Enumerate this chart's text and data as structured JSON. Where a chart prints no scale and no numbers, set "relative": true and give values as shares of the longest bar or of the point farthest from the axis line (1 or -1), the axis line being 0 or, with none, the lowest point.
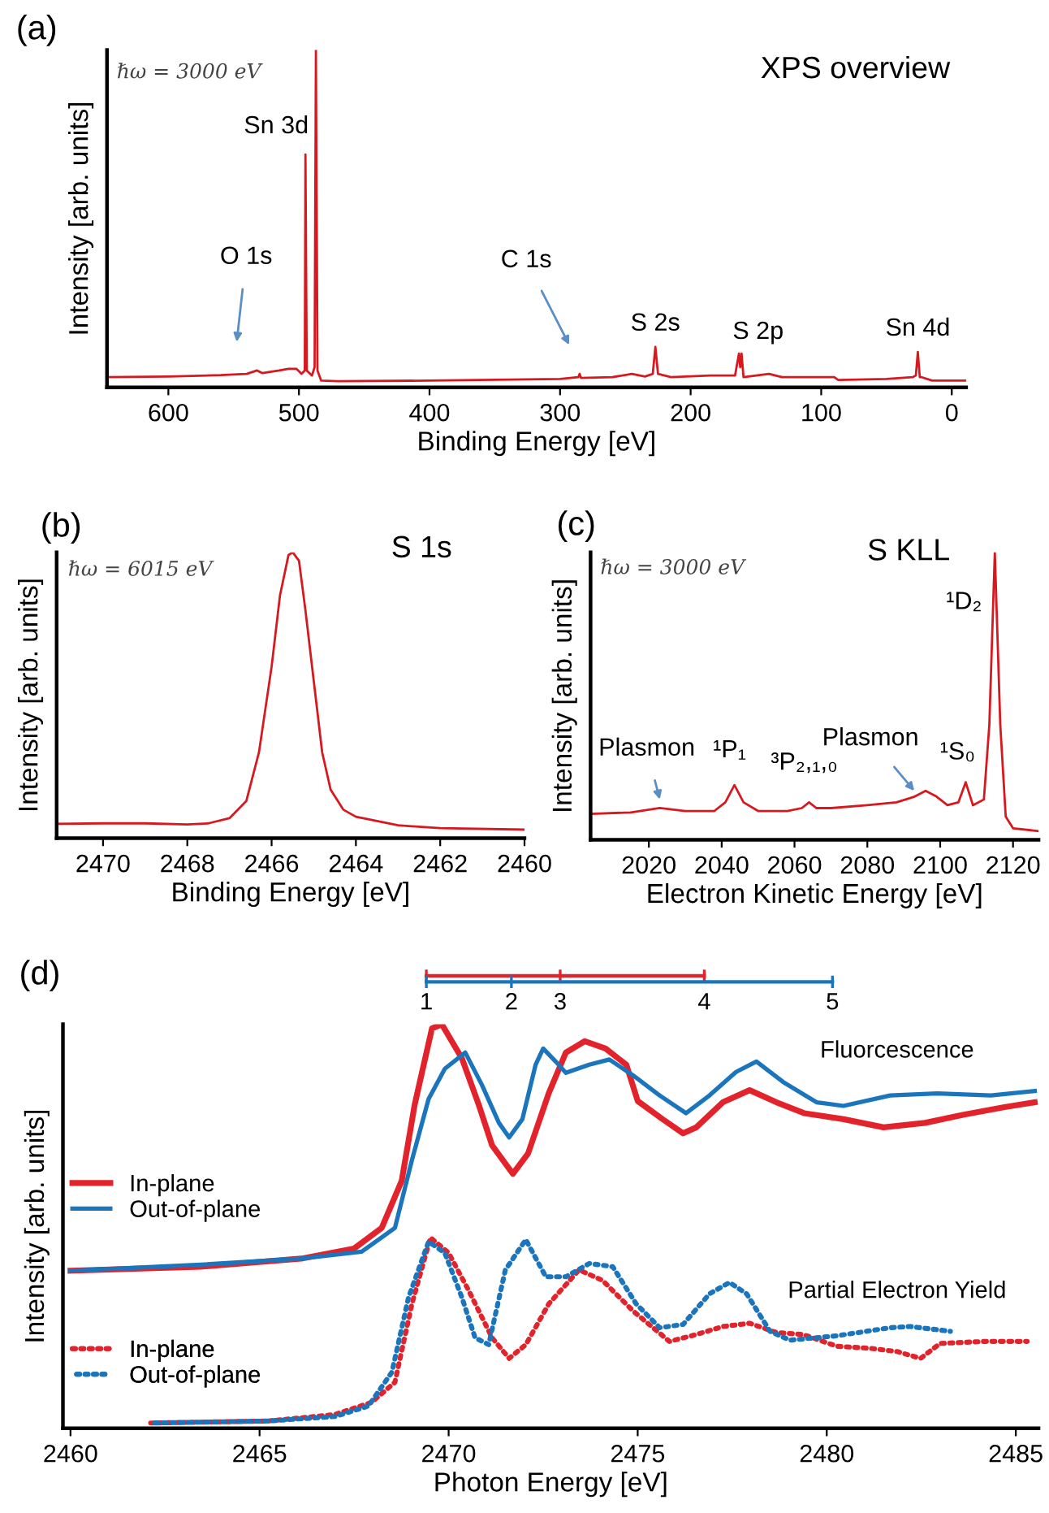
{
  "chart_data": [
    {
      "type": "line",
      "title": "XPS overview",
      "xlabel": "Binding Energy [eV]",
      "ylabel": "Intensity [arb. units]",
      "relative": true,
      "xlim": [
        647,
        -11
      ],
      "xticks": [
        600,
        500,
        400,
        300,
        200,
        100,
        0
      ],
      "series": [
        {
          "color": "#d7191f",
          "x": [
            647,
            600,
            560,
            540,
            532,
            528,
            515,
            508,
            502,
            498,
            495.5,
            495,
            494,
            490,
            488,
            487,
            485.8,
            483,
            470,
            400,
            300,
            286,
            285,
            284,
            260,
            245,
            235,
            229,
            227,
            225,
            215,
            185,
            166,
            163,
            162,
            161,
            159.5,
            140,
            130,
            100,
            90,
            87,
            50,
            30,
            27.5,
            26,
            24.5,
            23,
            15,
            -11
          ],
          "values": [
            0.03,
            0.032,
            0.036,
            0.04,
            0.05,
            0.042,
            0.05,
            0.055,
            0.055,
            0.04,
            0.05,
            0.69,
            0.05,
            0.035,
            0.06,
            1.0,
            0.05,
            0.02,
            0.018,
            0.02,
            0.025,
            0.03,
            0.04,
            0.028,
            0.03,
            0.04,
            0.032,
            0.04,
            0.12,
            0.04,
            0.03,
            0.035,
            0.035,
            0.1,
            0.06,
            0.1,
            0.03,
            0.04,
            0.03,
            0.03,
            0.03,
            0.022,
            0.025,
            0.03,
            0.035,
            0.105,
            0.03,
            0.03,
            0.02,
            0.02
          ]
        }
      ],
      "annotations": [
        "(a)",
        "ℏω = 3000 eV",
        {
          "text": "Sn 3d",
          "x": 495,
          "y": 0.69
        },
        "O 1s",
        "C 1s",
        {
          "text": "S 2s",
          "x": 227,
          "y": 0.12
        },
        {
          "text": "S 2p",
          "x": 162,
          "y": 0.1
        },
        {
          "text": "Sn 4d",
          "x": 26,
          "y": 0.105
        }
      ]
    },
    {
      "type": "line",
      "title": "S 1s",
      "xlabel": "Binding Energy [eV]",
      "ylabel": "Intensity [arb. units]",
      "relative": true,
      "xlim": [
        2471.1,
        2460
      ],
      "xticks": [
        2470,
        2468,
        2466,
        2464,
        2462,
        2460
      ],
      "series": [
        {
          "color": "#d7191f",
          "x": [
            2471.1,
            2470,
            2469,
            2468,
            2467.5,
            2467,
            2466.6,
            2466.3,
            2466.0,
            2465.8,
            2465.6,
            2465.5,
            2465.35,
            2465.2,
            2465.0,
            2464.8,
            2464.6,
            2464.3,
            2464,
            2463,
            2462,
            2460
          ],
          "values": [
            0.05,
            0.052,
            0.052,
            0.048,
            0.052,
            0.07,
            0.13,
            0.3,
            0.6,
            0.85,
            0.99,
            1.0,
            0.97,
            0.8,
            0.55,
            0.3,
            0.17,
            0.1,
            0.075,
            0.045,
            0.035,
            0.03
          ]
        }
      ],
      "annotations": [
        "(b)",
        "ℏω = 6015 eV"
      ]
    },
    {
      "type": "line",
      "title": "S KLL",
      "xlabel": "Electron Kinetic Energy [eV]",
      "ylabel": "Intensity [arb. units]",
      "relative": true,
      "xlim": [
        2004,
        2127
      ],
      "xticks": [
        2020,
        2040,
        2060,
        2080,
        2100,
        2120
      ],
      "series": [
        {
          "color": "#d7191f",
          "x": [
            2004,
            2015,
            2023,
            2030,
            2038,
            2041,
            2043.5,
            2046,
            2050,
            2058,
            2062,
            2064,
            2066,
            2070,
            2080,
            2088,
            2093,
            2096,
            2099,
            2102,
            2105,
            2107,
            2109,
            2112,
            2113.5,
            2115,
            2116.5,
            2118,
            2120,
            2127
          ],
          "values": [
            0.09,
            0.095,
            0.11,
            0.1,
            0.1,
            0.13,
            0.19,
            0.13,
            0.1,
            0.1,
            0.11,
            0.13,
            0.11,
            0.11,
            0.12,
            0.13,
            0.15,
            0.17,
            0.15,
            0.12,
            0.13,
            0.2,
            0.12,
            0.14,
            0.4,
            1.0,
            0.4,
            0.08,
            0.04,
            0.03
          ]
        }
      ],
      "annotations": [
        "(c)",
        "ℏω = 3000 eV",
        {
          "text": "Plasmon",
          "x": 2023,
          "y": 0.14
        },
        {
          "text": "¹P₁",
          "x": 2043.5,
          "y": 0.19
        },
        {
          "text": "³P₂,₁,₀",
          "x": 2064,
          "y": 0.13
        },
        {
          "text": "Plasmon",
          "x": 2092.9,
          "y": 0.17
        },
        {
          "text": "¹S₀",
          "x": 2107,
          "y": 0.2
        },
        {
          "text": "¹D₂",
          "x": 2115,
          "y": 1.0
        }
      ]
    },
    {
      "type": "line",
      "xlabel": "Photon Energy [eV]",
      "ylabel": "Intensity [arb. units]",
      "relative": true,
      "xlim": [
        2459.8,
        2485.6
      ],
      "xticks": [
        2460,
        2465,
        2470,
        2475,
        2480,
        2485
      ],
      "legend": "left",
      "series": [
        {
          "name": "In-plane",
          "color": "#e3232c",
          "line_style": "solid",
          "x": [
            2460,
            2463.45,
            2466.1,
            2467.5,
            2468.23,
            2468.76,
            2469.1,
            2469.56,
            2469.82,
            2470.35,
            2470.8,
            2471.15,
            2471.7,
            2472.1,
            2472.65,
            2473.1,
            2473.6,
            2474.15,
            2474.7,
            2475.0,
            2475.66,
            2476.2,
            2476.55,
            2477.25,
            2477.96,
            2478.67,
            2479.4,
            2480.45,
            2481.5,
            2482.6,
            2483.6,
            2484.7,
            2485.5
          ],
          "values": [
            0.39,
            0.4,
            0.42,
            0.445,
            0.496,
            0.613,
            0.8,
            0.99,
            1.0,
            0.916,
            0.8,
            0.7,
            0.63,
            0.68,
            0.83,
            0.93,
            0.958,
            0.94,
            0.9,
            0.81,
            0.765,
            0.73,
            0.745,
            0.807,
            0.837,
            0.807,
            0.78,
            0.765,
            0.745,
            0.756,
            0.776,
            0.795,
            0.807
          ]
        },
        {
          "name": "Out-of-plane",
          "color": "#1b75bc",
          "line_style": "solid",
          "x": [
            2460,
            2463.45,
            2466.1,
            2467.7,
            2468.58,
            2469.03,
            2469.47,
            2469.9,
            2470.44,
            2470.88,
            2471.33,
            2471.6,
            2471.95,
            2472.3,
            2472.5,
            2472.83,
            2473.1,
            2473.72,
            2474.25,
            2474.87,
            2475.58,
            2476.28,
            2476.9,
            2477.6,
            2478.14,
            2478.85,
            2479.73,
            2480.44,
            2481.68,
            2482.92,
            2484.34,
            2485.5
          ],
          "values": [
            0.39,
            0.405,
            0.42,
            0.437,
            0.496,
            0.664,
            0.815,
            0.89,
            0.93,
            0.85,
            0.756,
            0.72,
            0.765,
            0.9,
            0.94,
            0.908,
            0.88,
            0.9,
            0.913,
            0.874,
            0.824,
            0.78,
            0.824,
            0.882,
            0.908,
            0.857,
            0.807,
            0.798,
            0.824,
            0.829,
            0.824,
            0.835
          ]
        },
        {
          "name": "In-plane",
          "color": "#e3232c",
          "line_style": "dotted",
          "x": [
            2462.12,
            2465.22,
            2466.99,
            2467.96,
            2468.58,
            2469.03,
            2469.52,
            2470.0,
            2470.53,
            2471.15,
            2471.6,
            2472.04,
            2472.65,
            2473.45,
            2474.07,
            2474.87,
            2475.84,
            2476.55,
            2477.26,
            2477.96,
            2478.67,
            2479.38,
            2480.27,
            2481.15,
            2481.86,
            2482.48,
            2483.0,
            2484.16,
            2485.3
          ],
          "values": [
            0.013,
            0.018,
            0.034,
            0.064,
            0.114,
            0.308,
            0.472,
            0.434,
            0.341,
            0.224,
            0.173,
            0.207,
            0.308,
            0.392,
            0.366,
            0.291,
            0.215,
            0.232,
            0.252,
            0.26,
            0.237,
            0.232,
            0.203,
            0.198,
            0.19,
            0.173,
            0.21,
            0.215,
            0.215
          ]
        },
        {
          "name": "Out-of-plane",
          "color": "#1b75bc",
          "line_style": "dotted",
          "x": [
            2462.12,
            2465.22,
            2466.99,
            2467.88,
            2468.5,
            2468.94,
            2469.47,
            2469.9,
            2470.35,
            2470.7,
            2471.06,
            2471.5,
            2472.04,
            2472.57,
            2473.1,
            2473.72,
            2474.34,
            2474.96,
            2475.58,
            2476.2,
            2476.9,
            2477.43,
            2477.88,
            2478.5,
            2479.03,
            2480.27,
            2481.68,
            2482.2,
            2483.27
          ],
          "values": [
            0.013,
            0.018,
            0.029,
            0.055,
            0.139,
            0.324,
            0.462,
            0.434,
            0.324,
            0.224,
            0.207,
            0.392,
            0.467,
            0.375,
            0.375,
            0.408,
            0.4,
            0.308,
            0.249,
            0.257,
            0.333,
            0.361,
            0.333,
            0.24,
            0.218,
            0.229,
            0.249,
            0.252,
            0.24
          ]
        }
      ],
      "annotations": [
        "(d)",
        "Fluorcescence",
        "Partial Electron Yield",
        "1",
        "2",
        "3",
        "4",
        "5"
      ]
    }
  ]
}
